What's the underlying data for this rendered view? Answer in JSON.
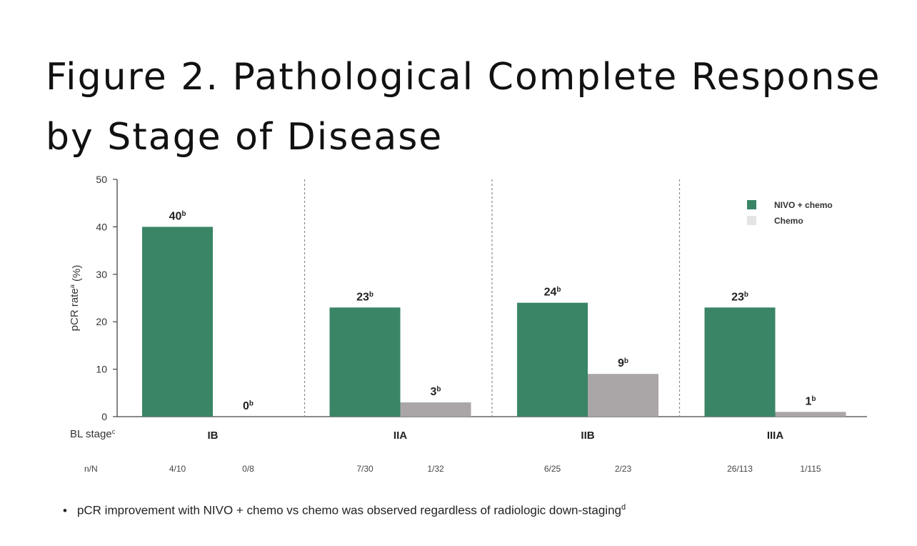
{
  "title_line1": "Figure 2. Pathological Complete Response",
  "title_line2": "by Stage of Disease",
  "footnote": {
    "bullet": "•",
    "text": "pCR improvement with NIVO + chemo vs chemo was observed regardless of radiologic down-staging",
    "sup": "d"
  },
  "colors": {
    "nivo": "#3a8566",
    "chemo": "#aaa5a6",
    "chemo_legend": "#e4e4e4",
    "axis": "#444444"
  },
  "chart_data": {
    "type": "bar",
    "ylabel": "pCR rate",
    "ylabel_sup": "a",
    "ylabel_suffix": " (%)",
    "ylim": [
      0,
      50
    ],
    "yticks": [
      0,
      10,
      20,
      30,
      40,
      50
    ],
    "x_row_label": "BL stage",
    "x_row_label_sup": "c",
    "n_row_label": "n/N",
    "categories": [
      "IB",
      "IIA",
      "IIB",
      "IIIA"
    ],
    "series": [
      {
        "name": "NIVO + chemo",
        "values": [
          40,
          23,
          24,
          23
        ],
        "value_labels": [
          "40",
          "23",
          "24",
          "23"
        ],
        "sup": "b",
        "nN": [
          "4/10",
          "7/30",
          "6/25",
          "26/113"
        ]
      },
      {
        "name": "Chemo",
        "values": [
          0,
          3,
          9,
          1
        ],
        "value_labels": [
          "0",
          "3",
          "9",
          "1"
        ],
        "sup": "b",
        "nN": [
          "0/8",
          "1/32",
          "2/23",
          "1/115"
        ]
      }
    ],
    "legend_position": "top-right",
    "grid": false
  }
}
